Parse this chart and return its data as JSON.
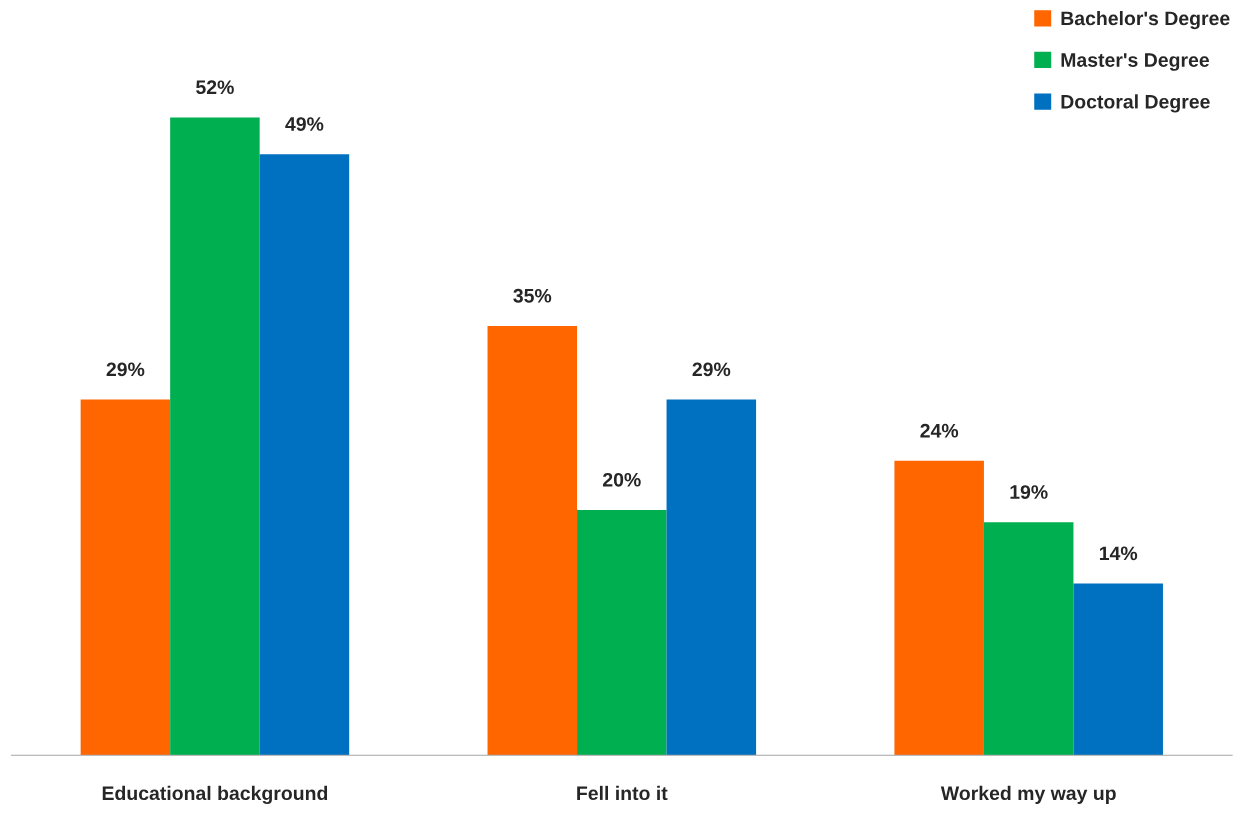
{
  "chart_data": {
    "type": "bar",
    "categories": [
      "Educational background",
      "Fell into it",
      "Worked my way up"
    ],
    "series": [
      {
        "name": "Bachelor's Degree",
        "color": "#ff6600",
        "values": [
          29,
          35,
          24
        ],
        "value_labels": [
          "29%",
          "35%",
          "24%"
        ]
      },
      {
        "name": "Master's Degree",
        "color": "#00b050",
        "values": [
          52,
          20,
          19
        ],
        "value_labels": [
          "52%",
          "20%",
          "19%"
        ]
      },
      {
        "name": "Doctoral Degree",
        "color": "#0070c0",
        "values": [
          49,
          29,
          14
        ],
        "value_labels": [
          "49%",
          "29%",
          "14%"
        ]
      }
    ],
    "legend": "top right"
  }
}
